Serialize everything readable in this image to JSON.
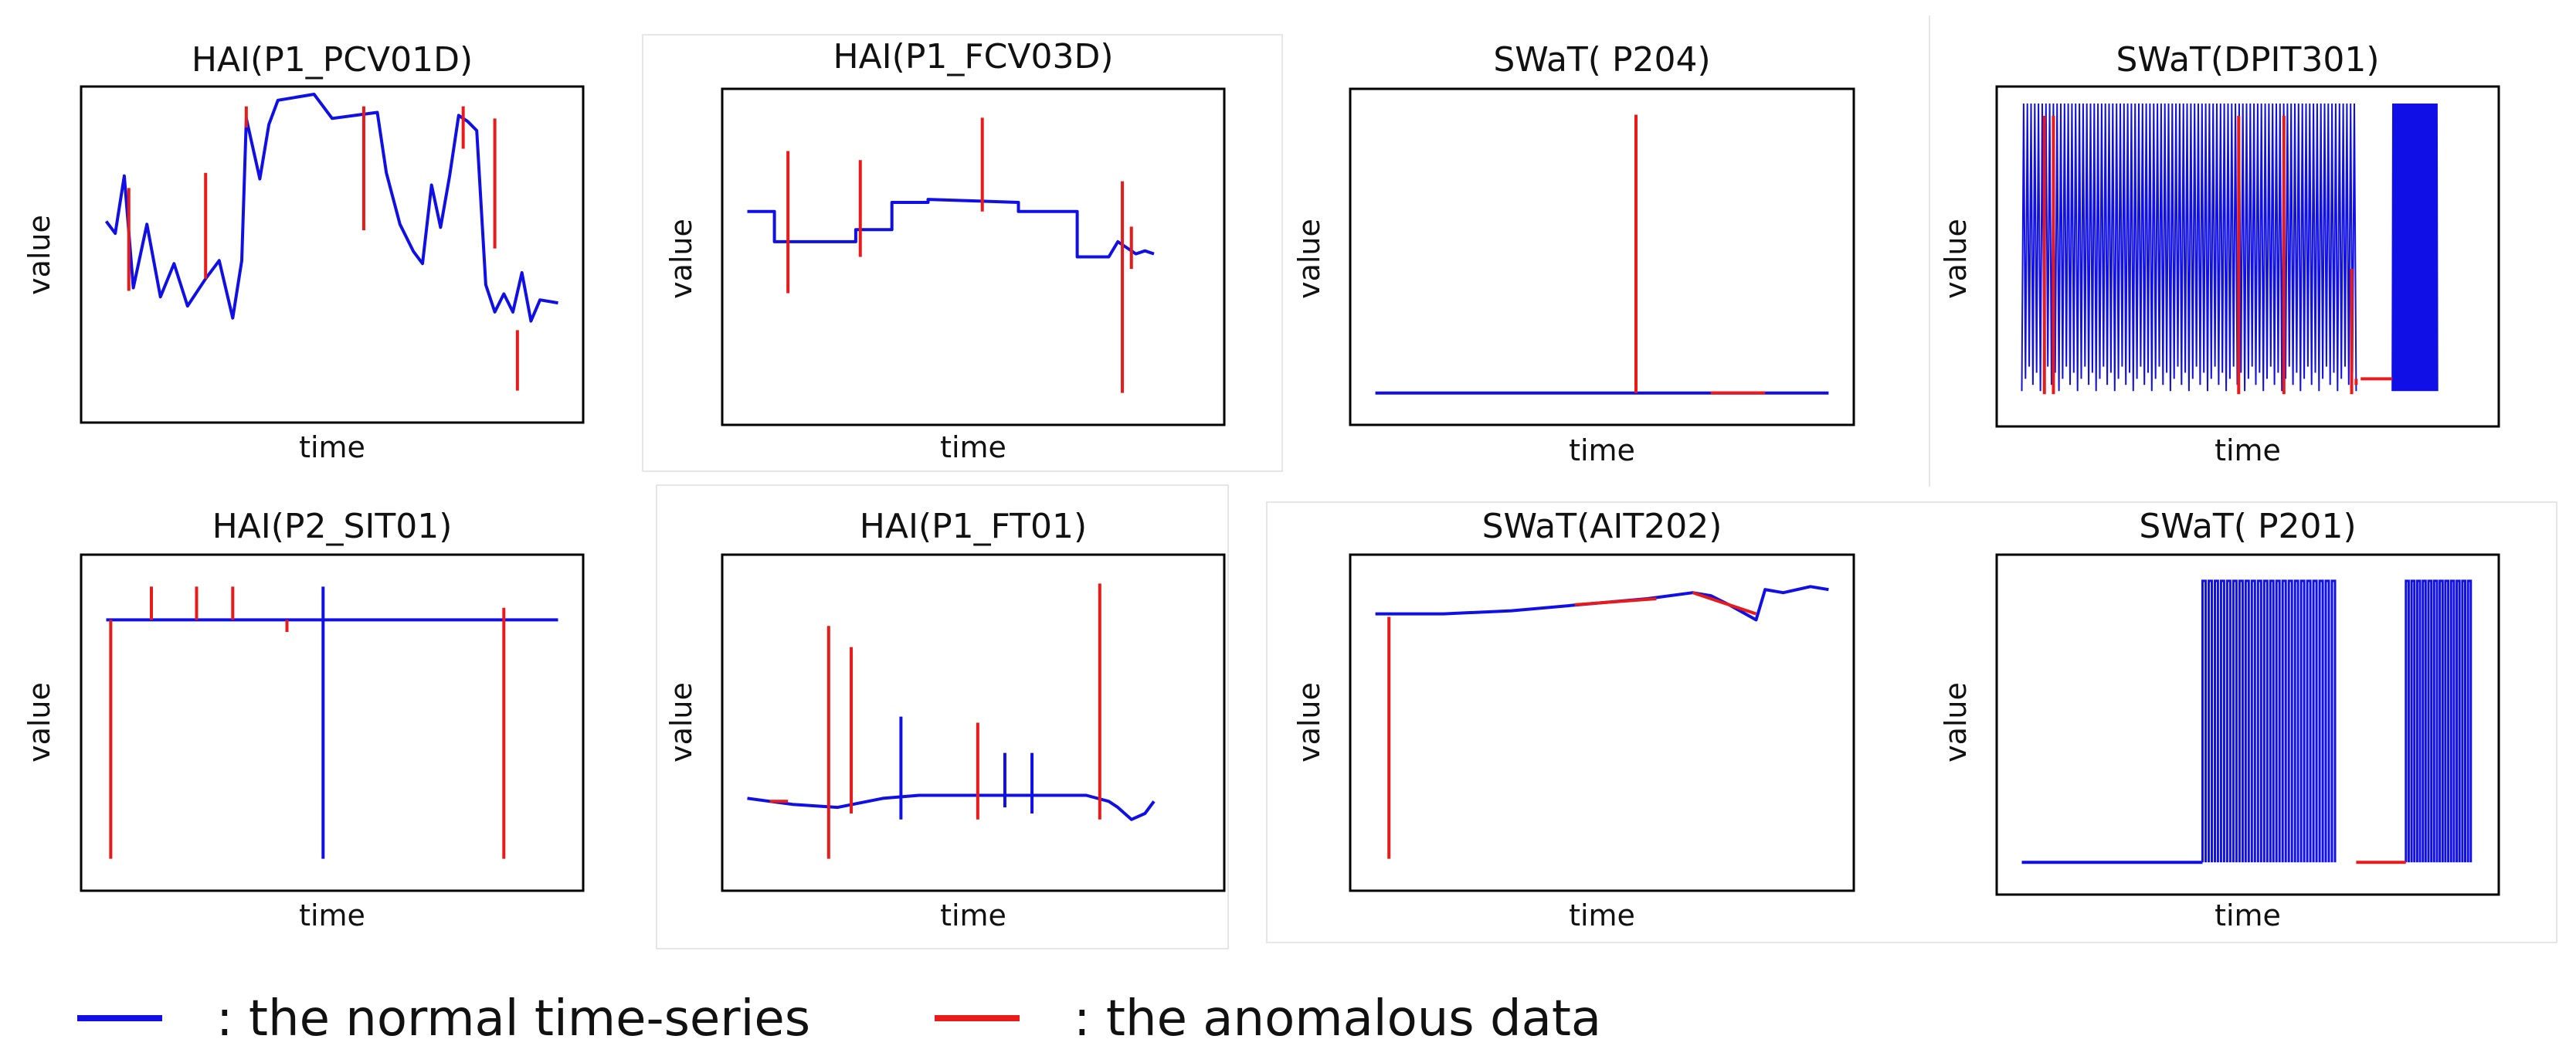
{
  "legend": {
    "normal_label": ": the normal time-series",
    "anomaly_label": ": the anomalous data"
  },
  "colors": {
    "normal": "#1010e6",
    "anomaly": "#e81a1a"
  },
  "chart_data": [
    {
      "type": "line",
      "title": "HAI(P1_PCV01D)",
      "xlabel": "time",
      "ylabel": "value",
      "xlim": [
        0,
        100
      ],
      "ylim": [
        0,
        100
      ],
      "series": [
        {
          "name": "normal",
          "points": [
            [
              0,
              65
            ],
            [
              2,
              60
            ],
            [
              4,
              78
            ],
            [
              6,
              40
            ],
            [
              9,
              60
            ],
            [
              12,
              35
            ],
            [
              15,
              45
            ],
            [
              18,
              30
            ],
            [
              22,
              38
            ],
            [
              25,
              52
            ],
            [
              28,
              32
            ],
            [
              30,
              50
            ],
            [
              31,
              96
            ],
            [
              34,
              75
            ],
            [
              36,
              92
            ],
            [
              38,
              99
            ],
            [
              42,
              99
            ],
            [
              46,
              99
            ],
            [
              50,
              99
            ],
            [
              55,
              99
            ],
            [
              60,
              99
            ],
            [
              62,
              78
            ],
            [
              65,
              60
            ],
            [
              68,
              50
            ],
            [
              70,
              45
            ],
            [
              72,
              70
            ],
            [
              74,
              55
            ],
            [
              76,
              80
            ],
            [
              78,
              99
            ],
            [
              80,
              96
            ],
            [
              82,
              92
            ],
            [
              84,
              40
            ],
            [
              86,
              30
            ],
            [
              88,
              35
            ],
            [
              90,
              28
            ],
            [
              92,
              40
            ],
            [
              94,
              32
            ],
            [
              96,
              38
            ],
            [
              100,
              36
            ]
          ]
        },
        {
          "name": "anomaly",
          "segments": [
            [
              [
                5,
                38
              ],
              [
                5,
                72
              ]
            ],
            [
              [
                22,
                42
              ],
              [
                22,
                77
              ]
            ],
            [
              [
                31,
                92
              ],
              [
                31,
                99
              ]
            ],
            [
              [
                57,
                58
              ],
              [
                57,
                99
              ]
            ],
            [
              [
                60,
                99
              ],
              [
                60,
                99
              ]
            ],
            [
              [
                79,
                85
              ],
              [
                79,
                99
              ]
            ],
            [
              [
                86,
                52
              ],
              [
                86,
                95
              ]
            ],
            [
              [
                91,
                25
              ],
              [
                91,
                5
              ]
            ]
          ]
        }
      ]
    },
    {
      "type": "line",
      "title": "HAI(P1_FCV03D)",
      "xlabel": "time",
      "ylabel": "value",
      "xlim": [
        0,
        100
      ],
      "ylim": [
        0,
        100
      ],
      "series": [
        {
          "name": "normal",
          "points": [
            [
              0,
              65
            ],
            [
              6,
              65
            ],
            [
              6,
              55
            ],
            [
              24,
              55
            ],
            [
              24,
              59
            ],
            [
              32,
              59
            ],
            [
              32,
              68
            ],
            [
              40,
              68
            ],
            [
              40,
              69
            ],
            [
              60,
              68
            ],
            [
              60,
              65
            ],
            [
              64,
              65
            ],
            [
              64,
              65
            ],
            [
              73,
              65
            ],
            [
              73,
              50
            ],
            [
              80,
              50
            ],
            [
              82,
              55
            ],
            [
              86,
              51
            ],
            [
              88,
              52
            ],
            [
              90,
              51
            ]
          ]
        },
        {
          "name": "anomaly",
          "segments": [
            [
              [
                9,
                38
              ],
              [
                9,
                85
              ]
            ],
            [
              [
                25,
                50
              ],
              [
                25,
                82
              ]
            ],
            [
              [
                52,
                65
              ],
              [
                52,
                96
              ]
            ],
            [
              [
                83,
                5
              ],
              [
                83,
                75
              ]
            ],
            [
              [
                85,
                46
              ],
              [
                85,
                60
              ]
            ]
          ]
        }
      ]
    },
    {
      "type": "line",
      "title": "SWaT( P204)",
      "xlabel": "time",
      "ylabel": "value",
      "xlim": [
        0,
        100
      ],
      "ylim": [
        0,
        100
      ],
      "series": [
        {
          "name": "normal",
          "points": [
            [
              0,
              5
            ],
            [
              100,
              5
            ]
          ]
        },
        {
          "name": "anomaly",
          "segments": [
            [
              [
                57.5,
                5
              ],
              [
                57.5,
                97
              ]
            ],
            [
              [
                74,
                5
              ],
              [
                86,
                5
              ]
            ]
          ]
        }
      ]
    },
    {
      "type": "line",
      "title": "SWaT(DPIT301)",
      "xlabel": "time",
      "ylabel": "value",
      "xlim": [
        0,
        100
      ],
      "ylim": [
        0,
        100
      ],
      "series": [
        {
          "name": "normal",
          "band": [
            [
              0,
              74
            ],
            [
              6,
              100
            ]
          ],
          "band2": [
            [
              82,
              92
            ],
            [
              6,
              100
            ]
          ]
        },
        {
          "name": "anomaly",
          "segments": [
            [
              [
                5,
                5
              ],
              [
                5,
                96
              ]
            ],
            [
              [
                7,
                5
              ],
              [
                7,
                96
              ]
            ],
            [
              [
                48,
                5
              ],
              [
                48,
                96
              ]
            ],
            [
              [
                58,
                5
              ],
              [
                58,
                96
              ]
            ],
            [
              [
                73,
                5
              ],
              [
                73,
                46
              ]
            ],
            [
              [
                74,
                8
              ],
              [
                74,
                10
              ]
            ],
            [
              [
                75,
                10
              ],
              [
                82,
                10
              ]
            ]
          ]
        }
      ]
    },
    {
      "type": "line",
      "title": "HAI(P2_SIT01)",
      "xlabel": "time",
      "ylabel": "value",
      "xlim": [
        0,
        100
      ],
      "ylim": [
        0,
        100
      ],
      "series": [
        {
          "name": "normal",
          "points": [
            [
              0,
              84
            ],
            [
              100,
              84
            ]
          ]
        },
        {
          "name": "anomaly",
          "segments": [
            [
              [
                1,
                84
              ],
              [
                1,
                5
              ]
            ],
            [
              [
                10,
                84
              ],
              [
                10,
                95
              ]
            ],
            [
              [
                20,
                84
              ],
              [
                20,
                95
              ]
            ],
            [
              [
                28,
                84
              ],
              [
                28,
                95
              ]
            ],
            [
              [
                40,
                84
              ],
              [
                40,
                80
              ]
            ],
            [
              [
                88,
                84
              ],
              [
                88,
                5
              ]
            ],
            [
              [
                88,
                84
              ],
              [
                88,
                88
              ]
            ]
          ]
        },
        {
          "name": "normal-spike",
          "segments": [
            [
              [
                48,
                84
              ],
              [
                48,
                5
              ]
            ],
            [
              [
                48,
                84
              ],
              [
                48,
                95
              ]
            ]
          ]
        }
      ]
    },
    {
      "type": "line",
      "title": "HAI(P1_FT01)",
      "xlabel": "time",
      "ylabel": "value",
      "xlim": [
        0,
        100
      ],
      "ylim": [
        0,
        100
      ],
      "series": [
        {
          "name": "normal",
          "points": [
            [
              0,
              25
            ],
            [
              5,
              24
            ],
            [
              10,
              23
            ],
            [
              20,
              22
            ],
            [
              30,
              25
            ],
            [
              38,
              26
            ],
            [
              48,
              26
            ],
            [
              55,
              26
            ],
            [
              65,
              26
            ],
            [
              75,
              26
            ],
            [
              80,
              24
            ],
            [
              82,
              22
            ],
            [
              85,
              18
            ],
            [
              88,
              20
            ],
            [
              90,
              24
            ]
          ]
        },
        {
          "name": "anomaly",
          "segments": [
            [
              [
                18,
                5
              ],
              [
                18,
                82
              ]
            ],
            [
              [
                23,
                20
              ],
              [
                23,
                75
              ]
            ],
            [
              [
                51,
                18
              ],
              [
                51,
                50
              ]
            ],
            [
              [
                78,
                18
              ],
              [
                78,
                96
              ]
            ],
            [
              [
                5,
                24
              ],
              [
                9,
                24
              ]
            ]
          ]
        },
        {
          "name": "normal-spike",
          "segments": [
            [
              [
                34,
                18
              ],
              [
                34,
                52
              ]
            ],
            [
              [
                57,
                22
              ],
              [
                57,
                40
              ]
            ],
            [
              [
                63,
                20
              ],
              [
                63,
                40
              ]
            ]
          ]
        }
      ]
    },
    {
      "type": "line",
      "title": "SWaT(AIT202)",
      "xlabel": "time",
      "ylabel": "value",
      "xlim": [
        0,
        100
      ],
      "ylim": [
        0,
        100
      ],
      "series": [
        {
          "name": "normal",
          "points": [
            [
              0,
              86
            ],
            [
              15,
              86
            ],
            [
              30,
              87
            ],
            [
              45,
              89
            ],
            [
              60,
              91
            ],
            [
              70,
              93
            ],
            [
              74,
              92
            ],
            [
              78,
              89
            ],
            [
              84,
              84
            ],
            [
              86,
              94
            ],
            [
              90,
              93
            ],
            [
              96,
              95
            ],
            [
              100,
              94
            ]
          ]
        },
        {
          "name": "anomaly",
          "segments": [
            [
              [
                3,
                85
              ],
              [
                3,
                5
              ]
            ],
            [
              [
                44,
                89
              ],
              [
                62,
                91
              ]
            ],
            [
              [
                70,
                93
              ],
              [
                84,
                86
              ]
            ]
          ]
        }
      ]
    },
    {
      "type": "line",
      "title": "SWaT( P201)",
      "xlabel": "time",
      "ylabel": "value",
      "xlim": [
        0,
        100
      ],
      "ylim": [
        0,
        100
      ],
      "series": [
        {
          "name": "normal",
          "points": [
            [
              0,
              5
            ],
            [
              40,
              5
            ]
          ],
          "pulses": [
            40,
            70
          ],
          "pulses2": [
            85,
            100
          ]
        },
        {
          "name": "anomaly",
          "segments": [
            [
              [
                74,
                5
              ],
              [
                85,
                5
              ]
            ]
          ]
        }
      ]
    }
  ]
}
